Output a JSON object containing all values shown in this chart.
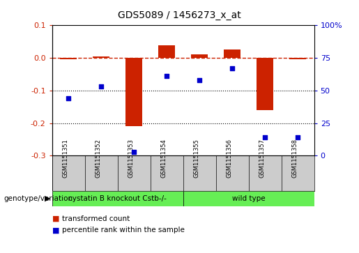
{
  "title": "GDS5089 / 1456273_x_at",
  "samples": [
    "GSM1151351",
    "GSM1151352",
    "GSM1151353",
    "GSM1151354",
    "GSM1151355",
    "GSM1151356",
    "GSM1151357",
    "GSM1151358"
  ],
  "bar_values": [
    -0.005,
    0.005,
    -0.21,
    0.038,
    0.01,
    0.025,
    -0.16,
    -0.005
  ],
  "dot_values": [
    44,
    53,
    3,
    61,
    58,
    67,
    14,
    14
  ],
  "group_boundary": 4,
  "ylim_left": [
    -0.3,
    0.1
  ],
  "ylim_right": [
    0,
    100
  ],
  "yticks_left": [
    -0.3,
    -0.2,
    -0.1,
    0.0,
    0.1
  ],
  "yticks_right": [
    0,
    25,
    50,
    75,
    100
  ],
  "bar_color": "#cc2200",
  "dot_color": "#0000cc",
  "dotted_lines": [
    -0.1,
    -0.2
  ],
  "legend_items": [
    {
      "label": "transformed count",
      "color": "#cc2200"
    },
    {
      "label": "percentile rank within the sample",
      "color": "#0000cc"
    }
  ],
  "genotype_label": "genotype/variation",
  "group1_label": "cystatin B knockout Cstb-/-",
  "group2_label": "wild type",
  "group1_color": "#66ee55",
  "group2_color": "#66ee55",
  "label_bg_color": "#cccccc",
  "bar_width": 0.5
}
